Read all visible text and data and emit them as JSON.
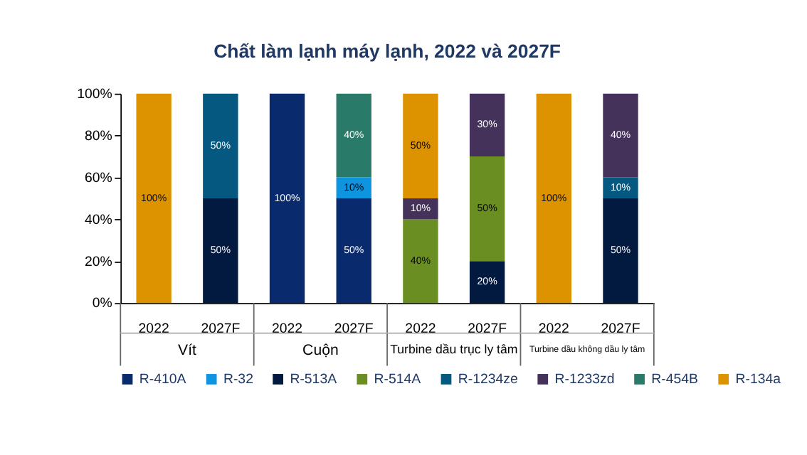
{
  "chart_data": {
    "type": "bar",
    "title": "Chất làm lạnh máy lạnh, 2022 và 2027F",
    "categories": [
      "2022",
      "2027F",
      "2022",
      "2027F",
      "2022",
      "2027F",
      "2022",
      "2027F"
    ],
    "stacked": true,
    "series": [
      {
        "name": "R-410A",
        "color": "#0a2a6e",
        "values": [
          null,
          null,
          100,
          50,
          null,
          null,
          null,
          null
        ],
        "value_labels": [
          null,
          null,
          "100%",
          "50%",
          null,
          null,
          null,
          null
        ]
      },
      {
        "name": "R-32",
        "color": "#0f95e0",
        "values": [
          null,
          null,
          null,
          10,
          null,
          null,
          null,
          null
        ],
        "value_labels": [
          null,
          null,
          null,
          "10%",
          null,
          null,
          null,
          null
        ]
      },
      {
        "name": "R-513A",
        "color": "#031a40",
        "values": [
          null,
          50,
          null,
          null,
          null,
          20,
          null,
          50
        ],
        "value_labels": [
          null,
          "50%",
          null,
          null,
          null,
          "20%",
          null,
          "50%"
        ]
      },
      {
        "name": "R-514A",
        "color": "#6b8e23",
        "values": [
          null,
          null,
          null,
          null,
          40,
          50,
          null,
          null
        ],
        "value_labels": [
          null,
          null,
          null,
          null,
          "40%",
          "50%",
          null,
          null
        ]
      },
      {
        "name": "R-1234ze",
        "color": "#05587f",
        "values": [
          null,
          50,
          null,
          null,
          null,
          null,
          null,
          10
        ],
        "value_labels": [
          null,
          "50%",
          null,
          null,
          null,
          null,
          null,
          "10%"
        ]
      },
      {
        "name": "R-1233zd",
        "color": "#44325a",
        "values": [
          null,
          null,
          null,
          null,
          10,
          30,
          null,
          40
        ],
        "value_labels": [
          null,
          null,
          null,
          null,
          "10%",
          "30%",
          null,
          "40%"
        ]
      },
      {
        "name": "R-454B",
        "color": "#2a7a6a",
        "values": [
          null,
          null,
          null,
          40,
          null,
          null,
          null,
          null
        ],
        "value_labels": [
          null,
          null,
          null,
          "40%",
          null,
          null,
          null,
          null
        ]
      },
      {
        "name": "R-134a",
        "color": "#dd9300",
        "values": [
          100,
          null,
          null,
          null,
          50,
          null,
          100,
          null
        ],
        "value_labels": [
          "100%",
          null,
          null,
          null,
          "50%",
          null,
          "100%",
          null
        ]
      }
    ],
    "ylim": [
      0,
      100
    ],
    "yticks": [
      {
        "value": 0,
        "label": "0%"
      },
      {
        "value": 20,
        "label": "20%"
      },
      {
        "value": 40,
        "label": "40%"
      },
      {
        "value": 60,
        "label": "60%"
      },
      {
        "value": 80,
        "label": "80%"
      },
      {
        "value": 100,
        "label": "100%"
      }
    ],
    "grid": false,
    "legend": "bottom",
    "annotations": [
      "Vít",
      "Cuộn",
      "Turbine dầu trục ly tâm",
      "Turbine dầu không dầu ly tâm"
    ]
  }
}
